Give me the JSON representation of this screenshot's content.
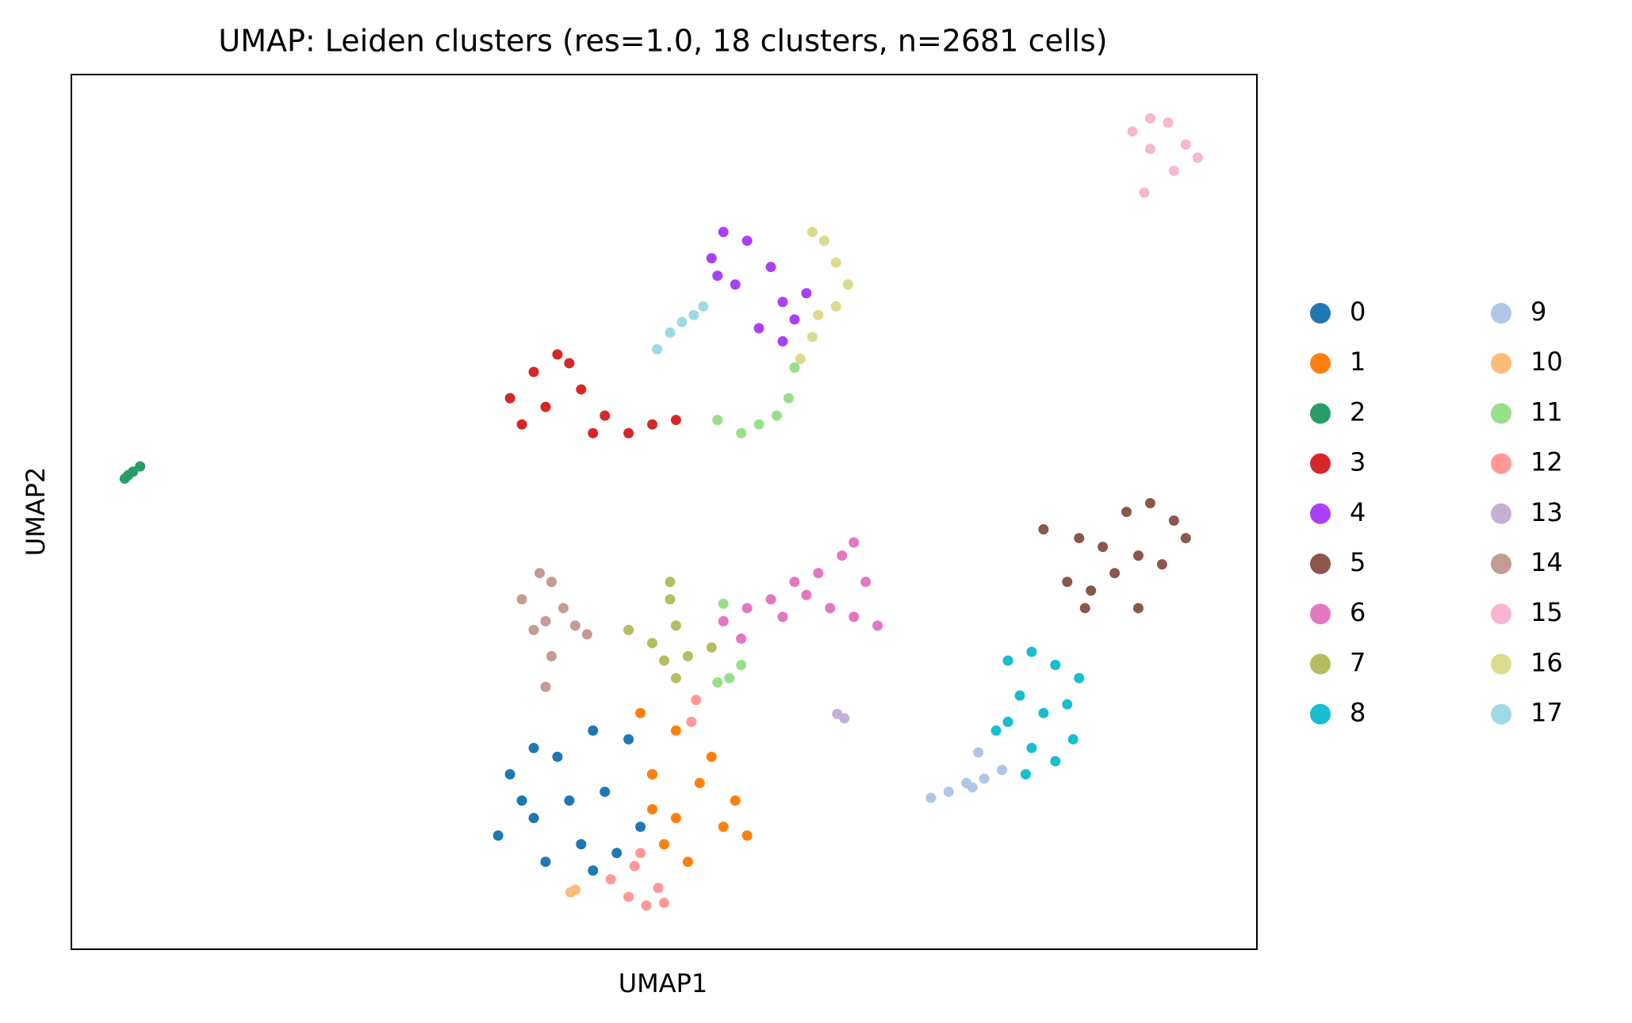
{
  "chart_data": {
    "type": "scatter",
    "title": "UMAP: Leiden clusters (res=1.0, 18 clusters, n=2681 cells)",
    "x_label": "UMAP1",
    "y_label": "UMAP2",
    "xlim": [
      0,
      100
    ],
    "ylim": [
      0,
      100
    ],
    "legend": "right",
    "series": [
      {
        "name": "0",
        "color": "#1f77b4",
        "x": [
          37,
          39,
          41,
          43,
          45,
          47,
          40,
          44,
          48,
          38,
          42,
          46,
          36,
          49,
          44,
          39
        ],
        "y": [
          20,
          15,
          22,
          12,
          18,
          24,
          10,
          9,
          14,
          17,
          17,
          11,
          13,
          20,
          25,
          23
        ]
      },
      {
        "name": "1",
        "color": "#ff7f0e",
        "x": [
          49,
          51,
          53,
          55,
          56,
          52,
          50,
          54,
          57,
          49,
          51,
          48
        ],
        "y": [
          20,
          15,
          19,
          14,
          17,
          10,
          12,
          22,
          13,
          16,
          25,
          27
        ]
      },
      {
        "name": "2",
        "color": "#279e68",
        "x": [
          4.5,
          5.2,
          5.8,
          4.8
        ],
        "y": [
          53.8,
          54.6,
          55.2,
          54.2
        ]
      },
      {
        "name": "3",
        "color": "#d62728",
        "x": [
          37,
          39,
          41,
          40,
          43,
          45,
          44,
          47,
          49,
          51,
          38,
          42
        ],
        "y": [
          63,
          66,
          68,
          62,
          64,
          61,
          59,
          59,
          60,
          60.5,
          60,
          67
        ]
      },
      {
        "name": "4",
        "color": "#aa40fc",
        "x": [
          54,
          55,
          57,
          59,
          56,
          60,
          61,
          58,
          60,
          54.5,
          62
        ],
        "y": [
          79,
          82,
          81,
          78,
          76,
          74,
          72,
          71,
          69.5,
          77,
          75
        ]
      },
      {
        "name": "5",
        "color": "#8c564b",
        "x": [
          82,
          85,
          87,
          89,
          91,
          93,
          94,
          90,
          88,
          86,
          84,
          85.5,
          90,
          92
        ],
        "y": [
          48,
          47,
          46,
          50,
          51,
          49,
          47,
          45,
          43,
          41,
          42,
          39,
          39,
          44
        ]
      },
      {
        "name": "6",
        "color": "#e377c2",
        "x": [
          55,
          57,
          59,
          61,
          63,
          65,
          66,
          67,
          64,
          66,
          68,
          56.5,
          62,
          60
        ],
        "y": [
          37.5,
          39,
          40,
          42,
          43,
          45,
          46.5,
          42,
          39,
          38,
          37,
          35.5,
          40.5,
          38
        ]
      },
      {
        "name": "7",
        "color": "#b5bd61",
        "x": [
          47,
          49,
          50,
          52,
          54,
          51,
          50.5,
          50.5,
          51
        ],
        "y": [
          36.5,
          35,
          33,
          33.5,
          34.5,
          37,
          40,
          42,
          31
        ]
      },
      {
        "name": "8",
        "color": "#17becf",
        "x": [
          79,
          81,
          83,
          85,
          84,
          82,
          80,
          79,
          81,
          83,
          84.5,
          80.5,
          78
        ],
        "y": [
          33,
          34,
          32.5,
          31,
          28,
          27,
          29,
          26,
          23,
          21.5,
          24,
          20,
          25
        ]
      },
      {
        "name": "9",
        "color": "#aec7e8",
        "x": [
          72.5,
          74,
          75.5,
          77,
          78.5,
          76,
          76.5
        ],
        "y": [
          17.3,
          18,
          19,
          19.5,
          20.5,
          18.5,
          22.5
        ]
      },
      {
        "name": "10",
        "color": "#ffbb78",
        "x": [
          42.1,
          42.5
        ],
        "y": [
          6.5,
          6.8
        ]
      },
      {
        "name": "11",
        "color": "#98df8a",
        "x": [
          61,
          60.5,
          59.5,
          58,
          56.5,
          54.5,
          55.5,
          56.5,
          54.5,
          55
        ],
        "y": [
          66.5,
          63,
          61,
          60,
          59,
          60.5,
          31,
          32.5,
          30.5,
          39.5
        ]
      },
      {
        "name": "12",
        "color": "#ff9896",
        "x": [
          45.5,
          47,
          48.5,
          49.5,
          47.5,
          48,
          50,
          52.3,
          52.7
        ],
        "y": [
          8,
          6,
          5,
          7,
          9.5,
          11,
          5.3,
          26,
          28.5
        ]
      },
      {
        "name": "13",
        "color": "#c5b0d5",
        "x": [
          64.6,
          65.2
        ],
        "y": [
          26.9,
          26.4
        ]
      },
      {
        "name": "14",
        "color": "#c49c94",
        "x": [
          38,
          39.5,
          40.5,
          41.5,
          42.5,
          40,
          43.5,
          39,
          40.5,
          40
        ],
        "y": [
          40,
          43,
          42,
          39,
          37,
          37.5,
          36,
          36.5,
          33.5,
          30
        ]
      },
      {
        "name": "15",
        "color": "#f7b6d2",
        "x": [
          89.5,
          91,
          92.5,
          94,
          95,
          93,
          91,
          90.5
        ],
        "y": [
          93.5,
          95,
          94.5,
          92,
          90.5,
          89,
          91.5,
          86.5
        ]
      },
      {
        "name": "16",
        "color": "#dbdb8d",
        "x": [
          62.5,
          63.5,
          64.5,
          65.5,
          64.5,
          63,
          62.5,
          61.5
        ],
        "y": [
          82,
          81,
          78.5,
          76,
          73.5,
          72.5,
          70,
          67.5
        ]
      },
      {
        "name": "17",
        "color": "#9edae5",
        "x": [
          49.4,
          50.5,
          51.5,
          52.5,
          53.3
        ],
        "y": [
          68.6,
          70.5,
          71.7,
          72.5,
          73.5
        ]
      }
    ]
  }
}
